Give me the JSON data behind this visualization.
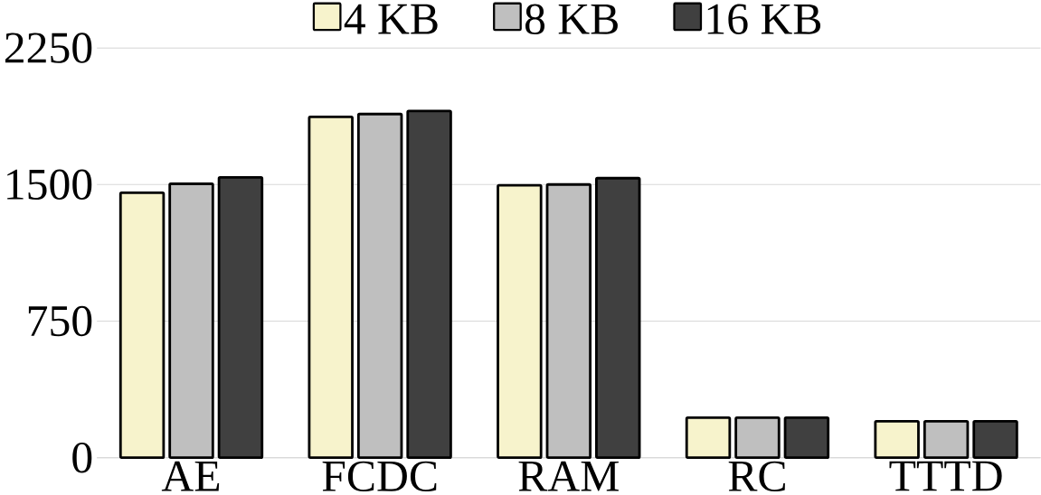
{
  "chart_data": {
    "type": "bar",
    "categories": [
      "AE",
      "FCDC",
      "RAM",
      "RC",
      "TTTD"
    ],
    "series": [
      {
        "name": "4 KB",
        "color": "#f7f3cc",
        "values": [
          1455,
          1872,
          1496,
          220,
          200
        ]
      },
      {
        "name": "8 KB",
        "color": "#bfbfbf",
        "values": [
          1504,
          1887,
          1500,
          220,
          200
        ]
      },
      {
        "name": "16 KB",
        "color": "#404040",
        "values": [
          1539,
          1904,
          1535,
          220,
          200
        ]
      }
    ],
    "ylim": [
      0,
      2250
    ],
    "yticks": [
      0,
      750,
      1500,
      2250
    ],
    "grid": "y",
    "legend": "top"
  }
}
